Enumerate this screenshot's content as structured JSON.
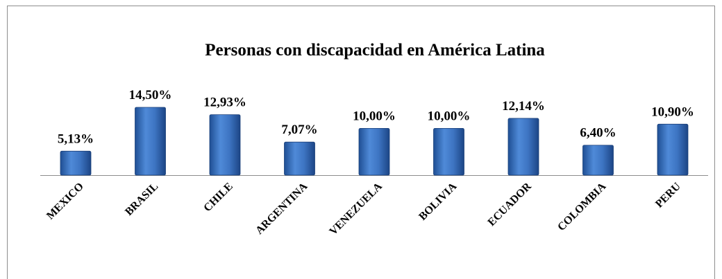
{
  "chart_data": {
    "type": "bar",
    "title": "Personas con discapacidad en América Latina",
    "categories": [
      "MEXICO",
      "BRASIL",
      "CHILE",
      "ARGENTINA",
      "VENEZUELA",
      "BOLIVIA",
      "ECUADOR",
      "COLOMBIA",
      "PERU"
    ],
    "values": [
      5.13,
      14.5,
      12.93,
      7.07,
      10,
      10,
      12.14,
      6.4,
      10.9
    ],
    "value_labels": [
      "5,13%",
      "14,50%",
      "12,93%",
      "7,07%",
      "10,00%",
      "10,00%",
      "12,14%",
      "6,40%",
      "10,90%"
    ],
    "color": "#3a70c0"
  }
}
